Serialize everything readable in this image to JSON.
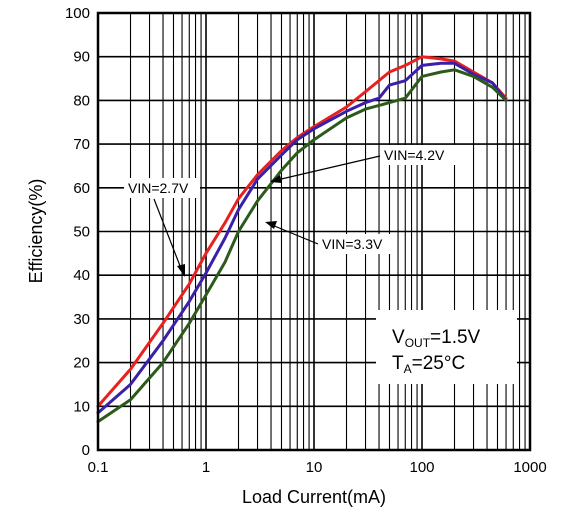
{
  "chart_data": {
    "type": "line",
    "xscale": "log",
    "xlim": [
      0.1,
      1000
    ],
    "ylim": [
      0,
      100
    ],
    "xlabel": "Load Current(mA)",
    "ylabel": "Efficiency(%)",
    "xticks": [
      "0.1",
      "1",
      "10",
      "100",
      "1000"
    ],
    "yticks": [
      "0",
      "10",
      "20",
      "30",
      "40",
      "50",
      "60",
      "70",
      "80",
      "90",
      "100"
    ],
    "grid": true,
    "series": [
      {
        "name": "VIN=2.7V",
        "color": "#e8201e",
        "points": [
          [
            0.1,
            10
          ],
          [
            0.2,
            18.5
          ],
          [
            0.4,
            29
          ],
          [
            0.7,
            38
          ],
          [
            1,
            45
          ],
          [
            1.5,
            52
          ],
          [
            2,
            57.5
          ],
          [
            3,
            63
          ],
          [
            5,
            68.5
          ],
          [
            7,
            71.5
          ],
          [
            10,
            74
          ],
          [
            20,
            78.5
          ],
          [
            30,
            82
          ],
          [
            50,
            86.5
          ],
          [
            70,
            88
          ],
          [
            100,
            90
          ],
          [
            150,
            89.5
          ],
          [
            200,
            89
          ],
          [
            300,
            86.5
          ],
          [
            450,
            84
          ],
          [
            600,
            80.5
          ]
        ]
      },
      {
        "name": "VIN=3.3V",
        "color": "#3a1fa8",
        "points": [
          [
            0.1,
            8.5
          ],
          [
            0.2,
            15
          ],
          [
            0.4,
            25
          ],
          [
            0.7,
            34
          ],
          [
            1,
            40.5
          ],
          [
            1.5,
            48.5
          ],
          [
            2,
            55
          ],
          [
            3,
            62
          ],
          [
            5,
            67.5
          ],
          [
            7,
            71
          ],
          [
            10,
            73.5
          ],
          [
            20,
            77.5
          ],
          [
            30,
            79.5
          ],
          [
            40,
            80.5
          ],
          [
            50,
            83.5
          ],
          [
            70,
            84.5
          ],
          [
            100,
            88
          ],
          [
            150,
            88.5
          ],
          [
            200,
            88.5
          ],
          [
            300,
            86
          ],
          [
            450,
            84
          ],
          [
            600,
            80
          ]
        ]
      },
      {
        "name": "VIN=4.2V",
        "color": "#2b5a1a",
        "points": [
          [
            0.1,
            6.5
          ],
          [
            0.2,
            11.5
          ],
          [
            0.4,
            20
          ],
          [
            0.7,
            29
          ],
          [
            1,
            35.5
          ],
          [
            1.5,
            43
          ],
          [
            2,
            50
          ],
          [
            3,
            57
          ],
          [
            5,
            64
          ],
          [
            7,
            68
          ],
          [
            10,
            71
          ],
          [
            20,
            76
          ],
          [
            30,
            78
          ],
          [
            50,
            79.5
          ],
          [
            70,
            80.5
          ],
          [
            100,
            85.5
          ],
          [
            150,
            86.5
          ],
          [
            200,
            87
          ],
          [
            300,
            85.5
          ],
          [
            450,
            83
          ],
          [
            600,
            80
          ]
        ]
      }
    ],
    "annotations": [
      {
        "text": "VIN=2.7V"
      },
      {
        "text": "VIN=3.3V"
      },
      {
        "text": "VIN=4.2V"
      }
    ],
    "conditions": {
      "vout_main": "V",
      "vout_sub": "OUT",
      "vout_value": "=1.5V",
      "ta_main": "T",
      "ta_sub": "A",
      "ta_value": "=25°C"
    }
  }
}
